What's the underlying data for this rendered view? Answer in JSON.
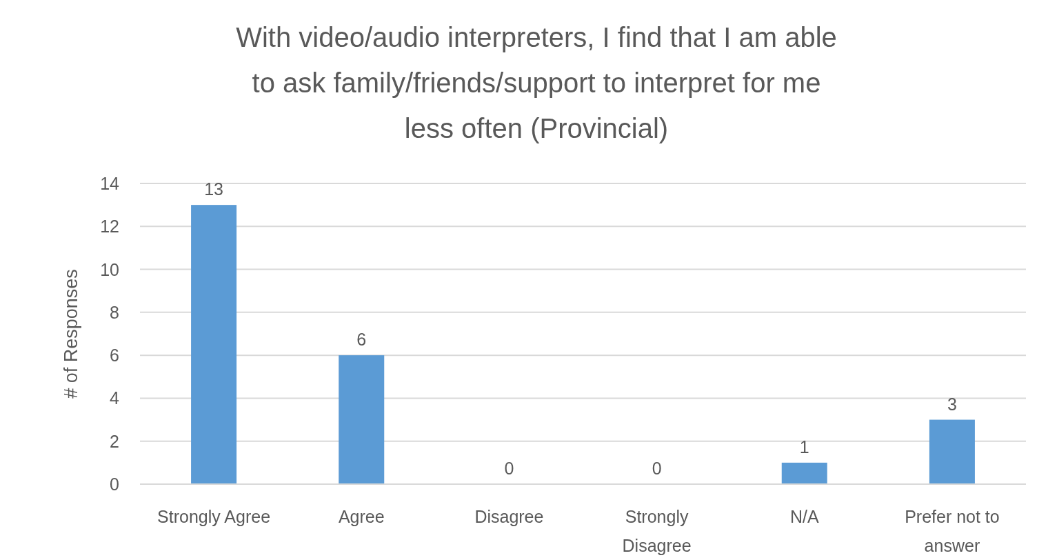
{
  "chart_data": {
    "type": "bar",
    "title": "With video/audio interpreters, I find that I am able to ask family/friends/support to interpret for me less often (Provincial)",
    "ylabel": "# of Responses",
    "categories": [
      "Strongly Agree",
      "Agree",
      "Disagree",
      "Strongly Disagree",
      "N/A",
      "Prefer not to answer"
    ],
    "series": [
      {
        "color": "#5b9bd5",
        "values": [
          13,
          6,
          0,
          0,
          1,
          3
        ]
      }
    ],
    "ylim": [
      0,
      14
    ],
    "yticks": [
      0,
      2,
      4,
      6,
      8,
      10,
      12,
      14
    ],
    "grid": "y",
    "data_labels": true
  }
}
